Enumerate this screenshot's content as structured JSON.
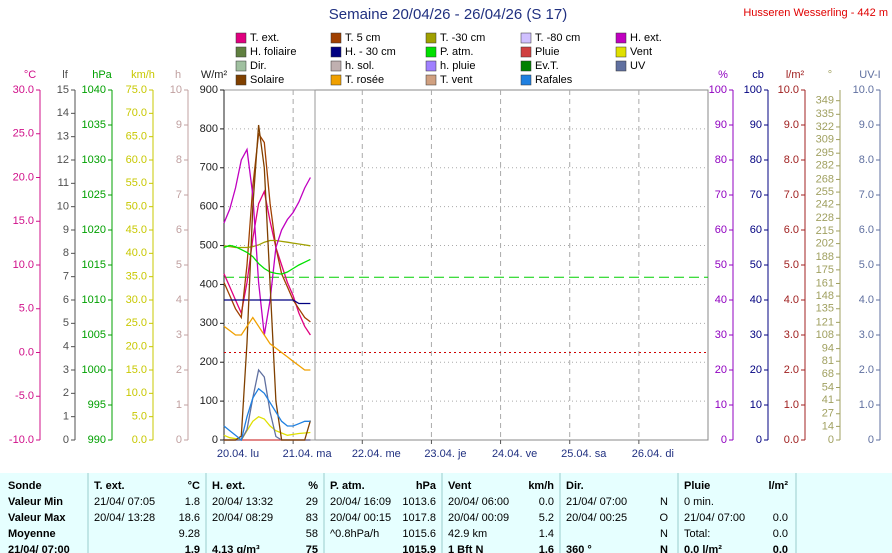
{
  "chart_data": {
    "type": "line",
    "title": "Semaine 20/04/26 - 26/04/26 (S 17)",
    "station": "Husseren Wesserling - 442 m",
    "categories": [
      "20.04. lu",
      "21.04. ma",
      "22.04. me",
      "23.04. je",
      "24.04. ve",
      "25.04. sa",
      "26.04. di"
    ],
    "grid": true,
    "axes": [
      {
        "label": "°C",
        "color": "#d0108a",
        "side": "left",
        "ylim": [
          -10,
          30
        ],
        "yticks": [
          {
            "value": 30,
            "label": "30.0"
          },
          {
            "value": 25,
            "label": "25.0"
          },
          {
            "value": 20,
            "label": "20.0"
          },
          {
            "value": 15,
            "label": "15.0"
          },
          {
            "value": 10,
            "label": "10.0"
          },
          {
            "value": 5,
            "label": "5.0"
          },
          {
            "value": 0,
            "label": "0.0"
          },
          {
            "value": -5,
            "label": "-5.0"
          },
          {
            "value": -10,
            "label": "-10.0"
          }
        ]
      },
      {
        "label": "lf",
        "color": "#505050",
        "side": "left",
        "ylim": [
          0,
          15
        ],
        "yticks": [
          15,
          14,
          13,
          12,
          11,
          10,
          9,
          8,
          7,
          6,
          5,
          4,
          3,
          2,
          1,
          0
        ]
      },
      {
        "label": "hPa",
        "color": "#00a000",
        "side": "left",
        "ylim": [
          990,
          1040
        ],
        "yticks": [
          1040,
          1035,
          1030,
          1025,
          1020,
          1015,
          1010,
          1005,
          1000,
          995,
          990
        ]
      },
      {
        "label": "km/h",
        "color": "#c8c800",
        "side": "left",
        "ylim": [
          0,
          75
        ],
        "yticks": [
          {
            "value": 75,
            "label": "75.0"
          },
          {
            "value": 70,
            "label": "70.0"
          },
          {
            "value": 65,
            "label": "65.0"
          },
          {
            "value": 60,
            "label": "60.0"
          },
          {
            "value": 55,
            "label": "55.0"
          },
          {
            "value": 50,
            "label": "50.0"
          },
          {
            "value": 45,
            "label": "45.0"
          },
          {
            "value": 40,
            "label": "40.0"
          },
          {
            "value": 35,
            "label": "35.0"
          },
          {
            "value": 30,
            "label": "30.0"
          },
          {
            "value": 25,
            "label": "25.0"
          },
          {
            "value": 20,
            "label": "20.0"
          },
          {
            "value": 15,
            "label": "15.0"
          },
          {
            "value": 10,
            "label": "10.0"
          },
          {
            "value": 5,
            "label": "5.0"
          },
          {
            "value": 0,
            "label": "0.0"
          }
        ]
      },
      {
        "label": "h",
        "color": "#c0a0a0",
        "side": "left",
        "ylim": [
          0,
          10
        ],
        "yticks": [
          10,
          9,
          8,
          7,
          6,
          5,
          4,
          3,
          2,
          1,
          0
        ]
      },
      {
        "label": "W/m²",
        "color": "#202020",
        "side": "left",
        "ylim": [
          0,
          900
        ],
        "yticks": [
          900,
          800,
          700,
          600,
          500,
          400,
          300,
          200,
          100,
          0
        ]
      },
      {
        "label": "%",
        "color": "#9000c0",
        "side": "right",
        "ylim": [
          0,
          100
        ],
        "yticks": [
          100,
          90,
          80,
          70,
          60,
          50,
          40,
          30,
          20,
          10,
          0
        ]
      },
      {
        "label": "cb",
        "color": "#000080",
        "side": "right",
        "ylim": [
          0,
          100
        ],
        "yticks": [
          100,
          90,
          80,
          70,
          60,
          50,
          40,
          30,
          20,
          10,
          0
        ]
      },
      {
        "label": "l/m²",
        "color": "#a02020",
        "side": "right",
        "ylim": [
          0,
          10
        ],
        "yticks": [
          {
            "value": 10,
            "label": "10.0"
          },
          {
            "value": 9,
            "label": "9.0"
          },
          {
            "value": 8,
            "label": "8.0"
          },
          {
            "value": 7,
            "label": "7.0"
          },
          {
            "value": 6,
            "label": "6.0"
          },
          {
            "value": 5,
            "label": "5.0"
          },
          {
            "value": 4,
            "label": "4.0"
          },
          {
            "value": 3,
            "label": "3.0"
          },
          {
            "value": 2,
            "label": "2.0"
          },
          {
            "value": 1,
            "label": "1.0"
          },
          {
            "value": 0,
            "label": "0.0"
          }
        ]
      },
      {
        "label": "°",
        "color": "#a0a060",
        "side": "right",
        "ylim": [
          0,
          360
        ],
        "yticks": [
          349,
          335,
          322,
          309,
          295,
          282,
          268,
          255,
          242,
          228,
          215,
          202,
          188,
          175,
          161,
          148,
          135,
          121,
          108,
          94,
          81,
          68,
          54,
          41,
          27,
          14,
          0
        ]
      },
      {
        "label": "UV-I",
        "color": "#6070a0",
        "side": "right",
        "ylim": [
          0,
          10
        ],
        "yticks": [
          {
            "value": 10,
            "label": "10.0"
          },
          {
            "value": 9,
            "label": "9.0"
          },
          {
            "value": 8,
            "label": "8.0"
          },
          {
            "value": 7,
            "label": "7.0"
          },
          {
            "value": 6,
            "label": "6.0"
          },
          {
            "value": 5,
            "label": "5.0"
          },
          {
            "value": 4,
            "label": "4.0"
          },
          {
            "value": 3,
            "label": "3.0"
          },
          {
            "value": 2,
            "label": "2.0"
          },
          {
            "value": 1,
            "label": "1.0"
          },
          0
        ]
      }
    ],
    "x": [
      "20/04 00:00",
      "20/04 02:00",
      "20/04 04:00",
      "20/04 06:00",
      "20/04 08:00",
      "20/04 10:00",
      "20/04 12:00",
      "20/04 14:00",
      "20/04 16:00",
      "20/04 18:00",
      "20/04 20:00",
      "20/04 22:00",
      "21/04 00:00",
      "21/04 02:00",
      "21/04 04:00",
      "21/04 06:00"
    ],
    "series": [
      {
        "name": "T. ext.",
        "color": "#e0007f",
        "axis": "°C",
        "values": [
          9,
          7.5,
          6,
          4.5,
          8,
          13,
          17,
          18.4,
          15,
          12,
          10,
          8,
          6.5,
          4.5,
          3,
          2
        ]
      },
      {
        "name": "T. 5 cm",
        "color": "#a04000",
        "axis": "°C",
        "values": [
          8,
          6.5,
          5,
          4,
          10,
          19,
          25,
          24,
          17,
          12,
          9,
          7.5,
          6,
          5,
          4,
          3.5
        ]
      },
      {
        "name": "T. -30 cm",
        "color": "#a0a000",
        "axis": "°C",
        "values": [
          12.2,
          12.1,
          12,
          12,
          12,
          12.1,
          12.3,
          12.6,
          12.8,
          12.8,
          12.7,
          12.6,
          12.5,
          12.4,
          12.3,
          12.2
        ]
      },
      {
        "name": "T. -80 cm",
        "color": "#d0c0ff",
        "axis": "°C",
        "values": [
          null,
          null,
          null,
          null,
          null,
          null,
          null,
          null,
          null,
          null,
          null,
          null,
          null,
          null,
          null,
          null
        ]
      },
      {
        "name": "H. ext.",
        "color": "#c000c0",
        "axis": "%",
        "values": [
          62,
          66,
          72,
          80,
          83,
          70,
          45,
          30,
          40,
          55,
          60,
          63,
          65,
          68,
          72,
          75
        ]
      },
      {
        "name": "H. foliaire",
        "color": "#608040",
        "axis": "lf",
        "values": [
          null,
          null,
          null,
          null,
          null,
          null,
          null,
          null,
          null,
          null,
          null,
          null,
          null,
          null,
          null,
          null
        ]
      },
      {
        "name": "H. - 30 cm",
        "color": "#000080",
        "axis": "cb",
        "values": [
          40,
          40,
          40,
          40,
          40,
          40,
          40,
          40,
          40,
          40,
          40,
          40,
          40,
          39,
          39,
          39
        ]
      },
      {
        "name": "P. atm.",
        "color": "#00e000",
        "axis": "hPa",
        "values": [
          1017.5,
          1017.8,
          1017.6,
          1017.2,
          1016.8,
          1016.2,
          1015.2,
          1014.5,
          1014,
          1013.8,
          1013.7,
          1014,
          1014.5,
          1015,
          1015.4,
          1015.8
        ]
      },
      {
        "name": "Pluie",
        "color": "#d04040",
        "axis": "l/m²",
        "values": [
          0,
          0,
          0,
          0,
          0,
          0,
          0,
          0,
          0,
          0,
          0,
          0,
          0,
          0,
          0,
          0
        ]
      },
      {
        "name": "Vent",
        "color": "#e0e000",
        "axis": "km/h",
        "values": [
          1,
          0.5,
          0.3,
          0,
          2,
          4,
          5,
          4.5,
          3,
          2,
          1.5,
          1,
          1.2,
          1.4,
          1.5,
          1.6
        ]
      },
      {
        "name": "Dir.",
        "color": "#a0c0a0",
        "axis": "°",
        "values": [
          null,
          null,
          null,
          null,
          null,
          null,
          null,
          null,
          null,
          null,
          null,
          null,
          null,
          null,
          null,
          null
        ]
      },
      {
        "name": "h. sol.",
        "color": "#c0b0b0",
        "axis": "h",
        "values": [
          null,
          null,
          null,
          null,
          null,
          null,
          null,
          null,
          null,
          null,
          null,
          null,
          null,
          null,
          null,
          null
        ]
      },
      {
        "name": "h. pluie",
        "color": "#a080ff",
        "axis": "h",
        "values": [
          null,
          null,
          null,
          null,
          null,
          null,
          null,
          null,
          null,
          null,
          null,
          null,
          null,
          null,
          null,
          null
        ]
      },
      {
        "name": "Ev.T.",
        "color": "#008000",
        "axis": "l/m²",
        "values": [
          null,
          null,
          null,
          null,
          null,
          null,
          null,
          null,
          null,
          null,
          null,
          null,
          null,
          null,
          null,
          null
        ]
      },
      {
        "name": "UV",
        "color": "#6070a0",
        "axis": "UV-I",
        "values": [
          0,
          0,
          0,
          0,
          0.3,
          1.2,
          2,
          1.8,
          0.8,
          0.1,
          0,
          0,
          0,
          0,
          0,
          0
        ]
      },
      {
        "name": "Solaire",
        "color": "#804000",
        "axis": "W/m²",
        "values": [
          0,
          0,
          0,
          10,
          250,
          600,
          810,
          700,
          400,
          100,
          0,
          0,
          0,
          0,
          0,
          50
        ]
      },
      {
        "name": "T. rosée",
        "color": "#f0a000",
        "axis": "°C",
        "values": [
          3,
          2.5,
          2,
          2,
          3,
          4,
          3,
          2,
          1,
          0.5,
          0,
          -0.5,
          -1,
          -1.5,
          -2,
          -2
        ]
      },
      {
        "name": "T. vent",
        "color": "#d0a080",
        "axis": "°C",
        "values": [
          null,
          null,
          null,
          null,
          null,
          null,
          null,
          null,
          null,
          null,
          null,
          null,
          null,
          null,
          null,
          null
        ]
      },
      {
        "name": "Rafales",
        "color": "#2080e0",
        "axis": "km/h",
        "values": [
          3,
          2,
          1,
          0,
          5,
          9,
          11,
          10,
          8,
          6,
          4,
          3,
          3,
          3.5,
          4,
          4
        ]
      }
    ],
    "reference_lines": [
      {
        "axis": "hPa",
        "value": 1013.25,
        "color": "#00d000",
        "style": "dashed"
      },
      {
        "axis": "°C",
        "value": 0,
        "color": "#d00000",
        "style": "dotted"
      }
    ]
  },
  "table": {
    "header": [
      "Sonde",
      "T. ext.",
      "°C",
      "H. ext.",
      "%",
      "P. atm.",
      "hPa",
      "Vent",
      "km/h",
      "Dir.",
      null,
      "Pluie",
      "l/m²"
    ],
    "rows": [
      [
        "Valeur Min",
        "21/04/ 07:05",
        "1.8",
        "20/04/ 13:32",
        "29",
        "20/04/ 16:09",
        "1013.6",
        "20/04/ 06:00",
        "0.0",
        "21/04/ 07:00",
        "N",
        "0 min.",
        null
      ],
      [
        "Valeur Max",
        "20/04/ 13:28",
        "18.6",
        "20/04/ 08:29",
        "83",
        "20/04/ 00:15",
        "1017.8",
        "20/04/ 00:09",
        "5.2",
        "20/04/ 00:25",
        "O",
        "21/04/  07:00",
        "0.0"
      ],
      [
        "Moyenne",
        null,
        "9.28",
        null,
        "58",
        "^0.8hPa/h",
        "1015.6",
        "42.9 km",
        "1.4",
        null,
        "N",
        "Total:",
        "0.0"
      ],
      [
        "21/04/ 07:00",
        null,
        "1.9",
        "4.13 g/m³",
        "75",
        null,
        "1015.9",
        "1 Bft N",
        "1.6",
        "360 °",
        "N",
        "0.0 l/m²",
        "0.0"
      ]
    ]
  }
}
